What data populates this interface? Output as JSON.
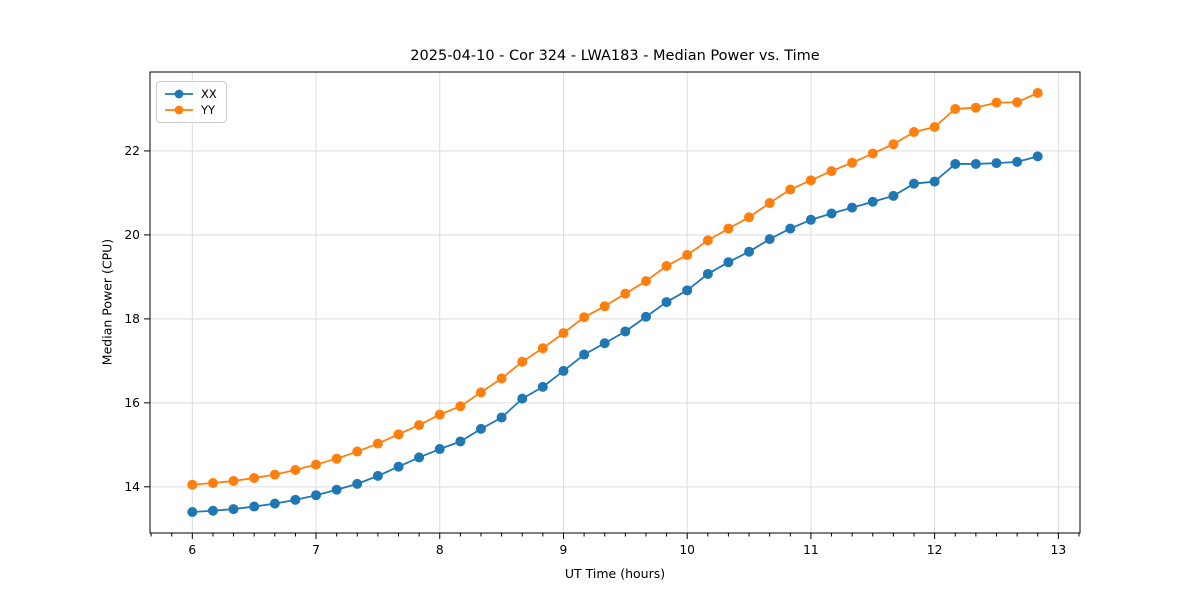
{
  "chart_data": {
    "type": "line",
    "title": "2025-04-10 - Cor 324 - LWA183 - Median Power vs. Time",
    "xlabel": "UT Time (hours)",
    "ylabel": "Median Power (CPU)",
    "xlim": [
      5.658,
      13.175
    ],
    "ylim": [
      12.9,
      23.88
    ],
    "x_major_ticks": [
      6,
      7,
      8,
      9,
      10,
      11,
      12,
      13
    ],
    "x_minor_step": 0.1667,
    "y_major_ticks": [
      14,
      16,
      18,
      20,
      22
    ],
    "grid": true,
    "legend_position": "upper-left",
    "colors": {
      "XX": "#1f77b4",
      "YY": "#ff7f0e",
      "grid": "#dcdcdc",
      "spine": "#000000",
      "background": "#ffffff"
    },
    "x": [
      6,
      6.167,
      6.333,
      6.5,
      6.667,
      6.833,
      7,
      7.167,
      7.333,
      7.5,
      7.667,
      7.833,
      8,
      8.167,
      8.333,
      8.5,
      8.667,
      8.833,
      9,
      9.167,
      9.333,
      9.5,
      9.667,
      9.833,
      10,
      10.167,
      10.333,
      10.5,
      10.667,
      10.833,
      11,
      11.167,
      11.333,
      11.5,
      11.667,
      11.833,
      12,
      12.167,
      12.333,
      12.5,
      12.667,
      12.833
    ],
    "series": [
      {
        "name": "XX",
        "color_key": "XX",
        "values": [
          13.4,
          13.43,
          13.47,
          13.53,
          13.6,
          13.69,
          13.8,
          13.93,
          14.07,
          14.26,
          14.48,
          14.7,
          14.9,
          15.08,
          15.38,
          15.65,
          16.1,
          16.38,
          16.76,
          17.15,
          17.42,
          17.7,
          18.05,
          18.4,
          18.68,
          19.07,
          19.35,
          19.6,
          19.9,
          20.15,
          20.36,
          20.51,
          20.65,
          20.79,
          20.93,
          21.22,
          21.27,
          21.69,
          21.69,
          21.71,
          21.74,
          21.87
        ]
      },
      {
        "name": "YY",
        "color_key": "YY",
        "values": [
          14.05,
          14.09,
          14.14,
          14.21,
          14.29,
          14.4,
          14.53,
          14.67,
          14.84,
          15.03,
          15.25,
          15.47,
          15.72,
          15.92,
          16.25,
          16.58,
          16.98,
          17.3,
          17.66,
          18.04,
          18.3,
          18.6,
          18.9,
          19.26,
          19.52,
          19.87,
          20.15,
          20.42,
          20.76,
          21.08,
          21.3,
          21.52,
          21.72,
          21.94,
          22.16,
          22.45,
          22.57,
          23.0,
          23.03,
          23.15,
          23.16,
          23.38
        ]
      }
    ]
  }
}
